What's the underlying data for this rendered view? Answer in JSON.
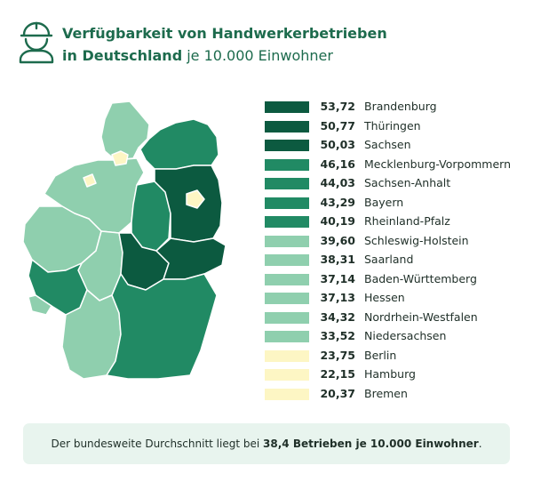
{
  "header": {
    "title_bold": "Verfügbarkeit von Handwerkerbetrieben",
    "title_line2_bold": "in Deutschland",
    "title_line2_rest": "je 10.000 Einwohner",
    "icon": "worker-helmet-icon"
  },
  "colors": {
    "dark": "#0c5a40",
    "medium": "#218a64",
    "light": "#8fcfae",
    "pale": "#fdf6c4",
    "title": "#1d6b4d",
    "footer_bg": "#e8f4ee"
  },
  "chart_data": {
    "type": "choropleth-map",
    "series": [
      {
        "state": "Brandenburg",
        "value": 53.72,
        "label": "53,72",
        "color": "#0c5a40"
      },
      {
        "state": "Thüringen",
        "value": 50.77,
        "label": "50,77",
        "color": "#0c5a40"
      },
      {
        "state": "Sachsen",
        "value": 50.03,
        "label": "50,03",
        "color": "#0c5a40"
      },
      {
        "state": "Mecklenburg-Vorpommern",
        "value": 46.16,
        "label": "46,16",
        "color": "#218a64"
      },
      {
        "state": "Sachsen-Anhalt",
        "value": 44.03,
        "label": "44,03",
        "color": "#218a64"
      },
      {
        "state": "Bayern",
        "value": 43.29,
        "label": "43,29",
        "color": "#218a64"
      },
      {
        "state": "Rheinland-Pfalz",
        "value": 40.19,
        "label": "40,19",
        "color": "#218a64"
      },
      {
        "state": "Schleswig-Holstein",
        "value": 39.6,
        "label": "39,60",
        "color": "#8fcfae"
      },
      {
        "state": "Saarland",
        "value": 38.31,
        "label": "38,31",
        "color": "#8fcfae"
      },
      {
        "state": "Baden-Württemberg",
        "value": 37.14,
        "label": "37,14",
        "color": "#8fcfae"
      },
      {
        "state": "Hessen",
        "value": 37.13,
        "label": "37,13",
        "color": "#8fcfae"
      },
      {
        "state": "Nordrhein-Westfalen",
        "value": 34.32,
        "label": "34,32",
        "color": "#8fcfae"
      },
      {
        "state": "Niedersachsen",
        "value": 33.52,
        "label": "33,52",
        "color": "#8fcfae"
      },
      {
        "state": "Berlin",
        "value": 23.75,
        "label": "23,75",
        "color": "#fdf6c4"
      },
      {
        "state": "Hamburg",
        "value": 22.15,
        "label": "22,15",
        "color": "#fdf6c4"
      },
      {
        "state": "Bremen",
        "value": 20.37,
        "label": "20,37",
        "color": "#fdf6c4"
      }
    ],
    "legend_placement": "right"
  },
  "footer": {
    "text_before": "Der bundesweite Durchschnitt liegt bei",
    "text_bold": "38,4 Betrieben je 10.000 Einwohner",
    "text_after": "."
  }
}
